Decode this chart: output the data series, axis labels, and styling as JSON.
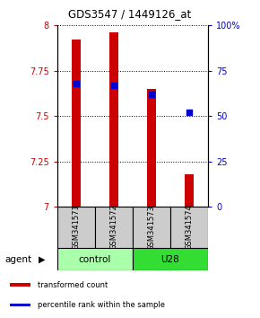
{
  "title": "GDS3547 / 1449126_at",
  "samples": [
    "GSM341571",
    "GSM341572",
    "GSM341573",
    "GSM341574"
  ],
  "bar_values": [
    7.92,
    7.96,
    7.65,
    7.18
  ],
  "percentile_values": [
    68,
    67,
    62,
    52
  ],
  "ylim_left": [
    7.0,
    8.0
  ],
  "ylim_right": [
    0,
    100
  ],
  "yticks_left": [
    7.0,
    7.25,
    7.5,
    7.75,
    8.0
  ],
  "ytick_labels_left": [
    "7",
    "7.25",
    "7.5",
    "7.75",
    "8"
  ],
  "yticks_right": [
    0,
    25,
    50,
    75,
    100
  ],
  "ytick_labels_right": [
    "0",
    "25",
    "50",
    "75",
    "100%"
  ],
  "bar_color": "#cc0000",
  "percentile_color": "#0000cc",
  "bar_width": 0.25,
  "groups": [
    {
      "label": "control",
      "indices": [
        0,
        1
      ],
      "color": "#aaffaa"
    },
    {
      "label": "U28",
      "indices": [
        2,
        3
      ],
      "color": "#33dd33"
    }
  ],
  "agent_label": "agent",
  "legend_items": [
    {
      "label": "transformed count",
      "color": "#cc0000"
    },
    {
      "label": "percentile rank within the sample",
      "color": "#0000cc"
    }
  ],
  "sample_box_color": "#cccccc",
  "ybase": 7.0
}
